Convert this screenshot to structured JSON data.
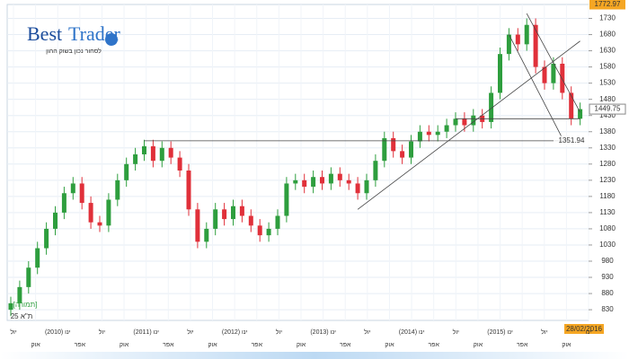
{
  "chart_data": {
    "type": "candlestick",
    "brand_first": "Best",
    "brand_second": "Trader",
    "tagline": "לסחור נכון בשוק ההון",
    "instrument": "ת\"א 25",
    "mode": "[תמורה]",
    "date": "28/02/2016",
    "up_color": "#2e9e3e",
    "down_color": "#e0303a",
    "grid": true,
    "ylim": [
      797,
      1773
    ],
    "yticks": [
      830,
      880,
      930,
      980,
      1030,
      1080,
      1130,
      1180,
      1230,
      1280,
      1330,
      1380,
      1430,
      1480,
      1530,
      1580,
      1630,
      1680,
      1730
    ],
    "xlabels": [
      "יול",
      "אוק",
      "ינו (2010)",
      "אפר",
      "יול",
      "אוק",
      "ינו (2011)",
      "אפר",
      "יול",
      "אוק",
      "ינו (2012)",
      "אפר",
      "יול",
      "אוק",
      "ינו (2013)",
      "אפר",
      "יול",
      "אוק",
      "ינו (2014)",
      "אפר",
      "יול",
      "אוק",
      "ינו (2015)",
      "אפר",
      "יול",
      "אוק",
      "ינו"
    ],
    "open": [
      830,
      850,
      900,
      960,
      1020,
      1080,
      1130,
      1190,
      1220,
      1160,
      1100,
      1090,
      1170,
      1230,
      1280,
      1310,
      1335,
      1290,
      1330,
      1300,
      1260,
      1140,
      1040,
      1080,
      1140,
      1110,
      1150,
      1120,
      1090,
      1060,
      1080,
      1120,
      1220,
      1230,
      1210,
      1240,
      1220,
      1250,
      1230,
      1220,
      1190,
      1230,
      1290,
      1360,
      1320,
      1300,
      1350,
      1380,
      1370,
      1380,
      1400,
      1420,
      1400,
      1430,
      1410,
      1500,
      1620,
      1680,
      1650,
      1710,
      1580,
      1530,
      1590,
      1500,
      1420
    ],
    "high": [
      870,
      920,
      980,
      1040,
      1100,
      1150,
      1210,
      1240,
      1240,
      1180,
      1120,
      1190,
      1250,
      1300,
      1330,
      1355,
      1355,
      1350,
      1350,
      1320,
      1280,
      1160,
      1100,
      1160,
      1160,
      1170,
      1170,
      1140,
      1110,
      1100,
      1140,
      1240,
      1250,
      1250,
      1260,
      1260,
      1270,
      1270,
      1250,
      1240,
      1250,
      1310,
      1380,
      1380,
      1340,
      1370,
      1400,
      1400,
      1400,
      1420,
      1440,
      1440,
      1450,
      1450,
      1520,
      1640,
      1700,
      1700,
      1730,
      1730,
      1600,
      1610,
      1610,
      1520,
      1470
    ],
    "low": [
      810,
      830,
      880,
      940,
      1000,
      1060,
      1110,
      1170,
      1140,
      1080,
      1070,
      1070,
      1150,
      1210,
      1260,
      1290,
      1270,
      1270,
      1280,
      1240,
      1120,
      1020,
      1020,
      1060,
      1090,
      1090,
      1100,
      1070,
      1040,
      1040,
      1060,
      1100,
      1200,
      1190,
      1190,
      1200,
      1200,
      1210,
      1200,
      1170,
      1170,
      1210,
      1270,
      1300,
      1280,
      1280,
      1330,
      1350,
      1350,
      1360,
      1380,
      1380,
      1380,
      1390,
      1390,
      1480,
      1600,
      1630,
      1630,
      1560,
      1510,
      1510,
      1480,
      1400,
      1400
    ],
    "close": [
      850,
      900,
      960,
      1020,
      1080,
      1130,
      1190,
      1220,
      1160,
      1100,
      1090,
      1170,
      1230,
      1280,
      1310,
      1335,
      1290,
      1330,
      1300,
      1260,
      1140,
      1040,
      1080,
      1140,
      1110,
      1150,
      1120,
      1090,
      1060,
      1080,
      1120,
      1220,
      1230,
      1210,
      1240,
      1220,
      1250,
      1230,
      1220,
      1190,
      1230,
      1290,
      1360,
      1320,
      1300,
      1350,
      1380,
      1370,
      1380,
      1400,
      1420,
      1400,
      1430,
      1410,
      1500,
      1620,
      1680,
      1650,
      1710,
      1580,
      1530,
      1590,
      1500,
      1420,
      1449.75
    ],
    "max_label": 1772.97,
    "last_label": 1449.75,
    "support_label": 1351.94,
    "lines": [
      {
        "from": [
          15,
          1351.94
        ],
        "to": [
          63,
          1351.94
        ]
      },
      {
        "from": [
          50,
          1420
        ],
        "to": [
          64,
          1420
        ]
      },
      {
        "from": [
          39,
          1140
        ],
        "to": [
          64,
          1660
        ]
      },
      {
        "from": [
          58,
          1745
        ],
        "to": [
          64,
          1440
        ]
      },
      {
        "from": [
          56,
          1680
        ],
        "to": [
          62,
          1360
        ]
      }
    ]
  }
}
